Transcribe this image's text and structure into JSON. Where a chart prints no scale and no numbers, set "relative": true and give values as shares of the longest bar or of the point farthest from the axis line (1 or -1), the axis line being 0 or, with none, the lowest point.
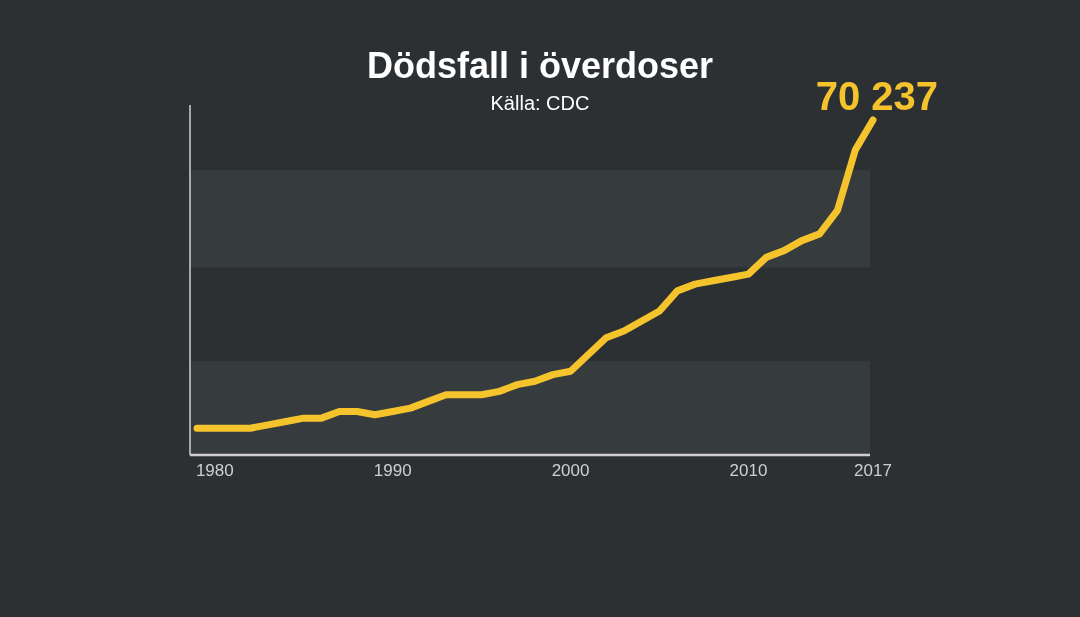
{
  "chart_data": {
    "type": "line",
    "title": "Dödsfall i överdoser",
    "subtitle": "Källa: CDC",
    "relative": true,
    "x": [
      1979,
      1980,
      1981,
      1982,
      1983,
      1984,
      1985,
      1986,
      1987,
      1988,
      1989,
      1990,
      1991,
      1992,
      1993,
      1994,
      1995,
      1996,
      1997,
      1998,
      1999,
      2000,
      2001,
      2002,
      2003,
      2004,
      2005,
      2006,
      2007,
      2008,
      2009,
      2010,
      2011,
      2012,
      2013,
      2014,
      2015,
      2016,
      2017
    ],
    "series": [
      {
        "color": "#f5c42c",
        "values": [
          0.08,
          0.08,
          0.08,
          0.08,
          0.09,
          0.1,
          0.11,
          0.11,
          0.13,
          0.13,
          0.12,
          0.13,
          0.14,
          0.16,
          0.18,
          0.18,
          0.18,
          0.19,
          0.21,
          0.22,
          0.24,
          0.25,
          0.3,
          0.35,
          0.37,
          0.4,
          0.43,
          0.49,
          0.51,
          0.52,
          0.53,
          0.54,
          0.59,
          0.61,
          0.64,
          0.66,
          0.73,
          0.91,
          1
        ]
      }
    ],
    "xlim": [
      1979,
      2017
    ],
    "xticks": [
      1980,
      1990,
      2000,
      2010,
      2017
    ],
    "bands": [
      {
        "axis": "y",
        "from": 0,
        "to": 0.28,
        "color": "#363c3e"
      },
      {
        "axis": "y",
        "from": 0.56,
        "to": 0.85,
        "color": "#363c3e"
      }
    ],
    "annotations": [
      {
        "text": "70 237",
        "x": 2017,
        "y": 1
      }
    ],
    "grid": false,
    "line_style": "solid"
  }
}
